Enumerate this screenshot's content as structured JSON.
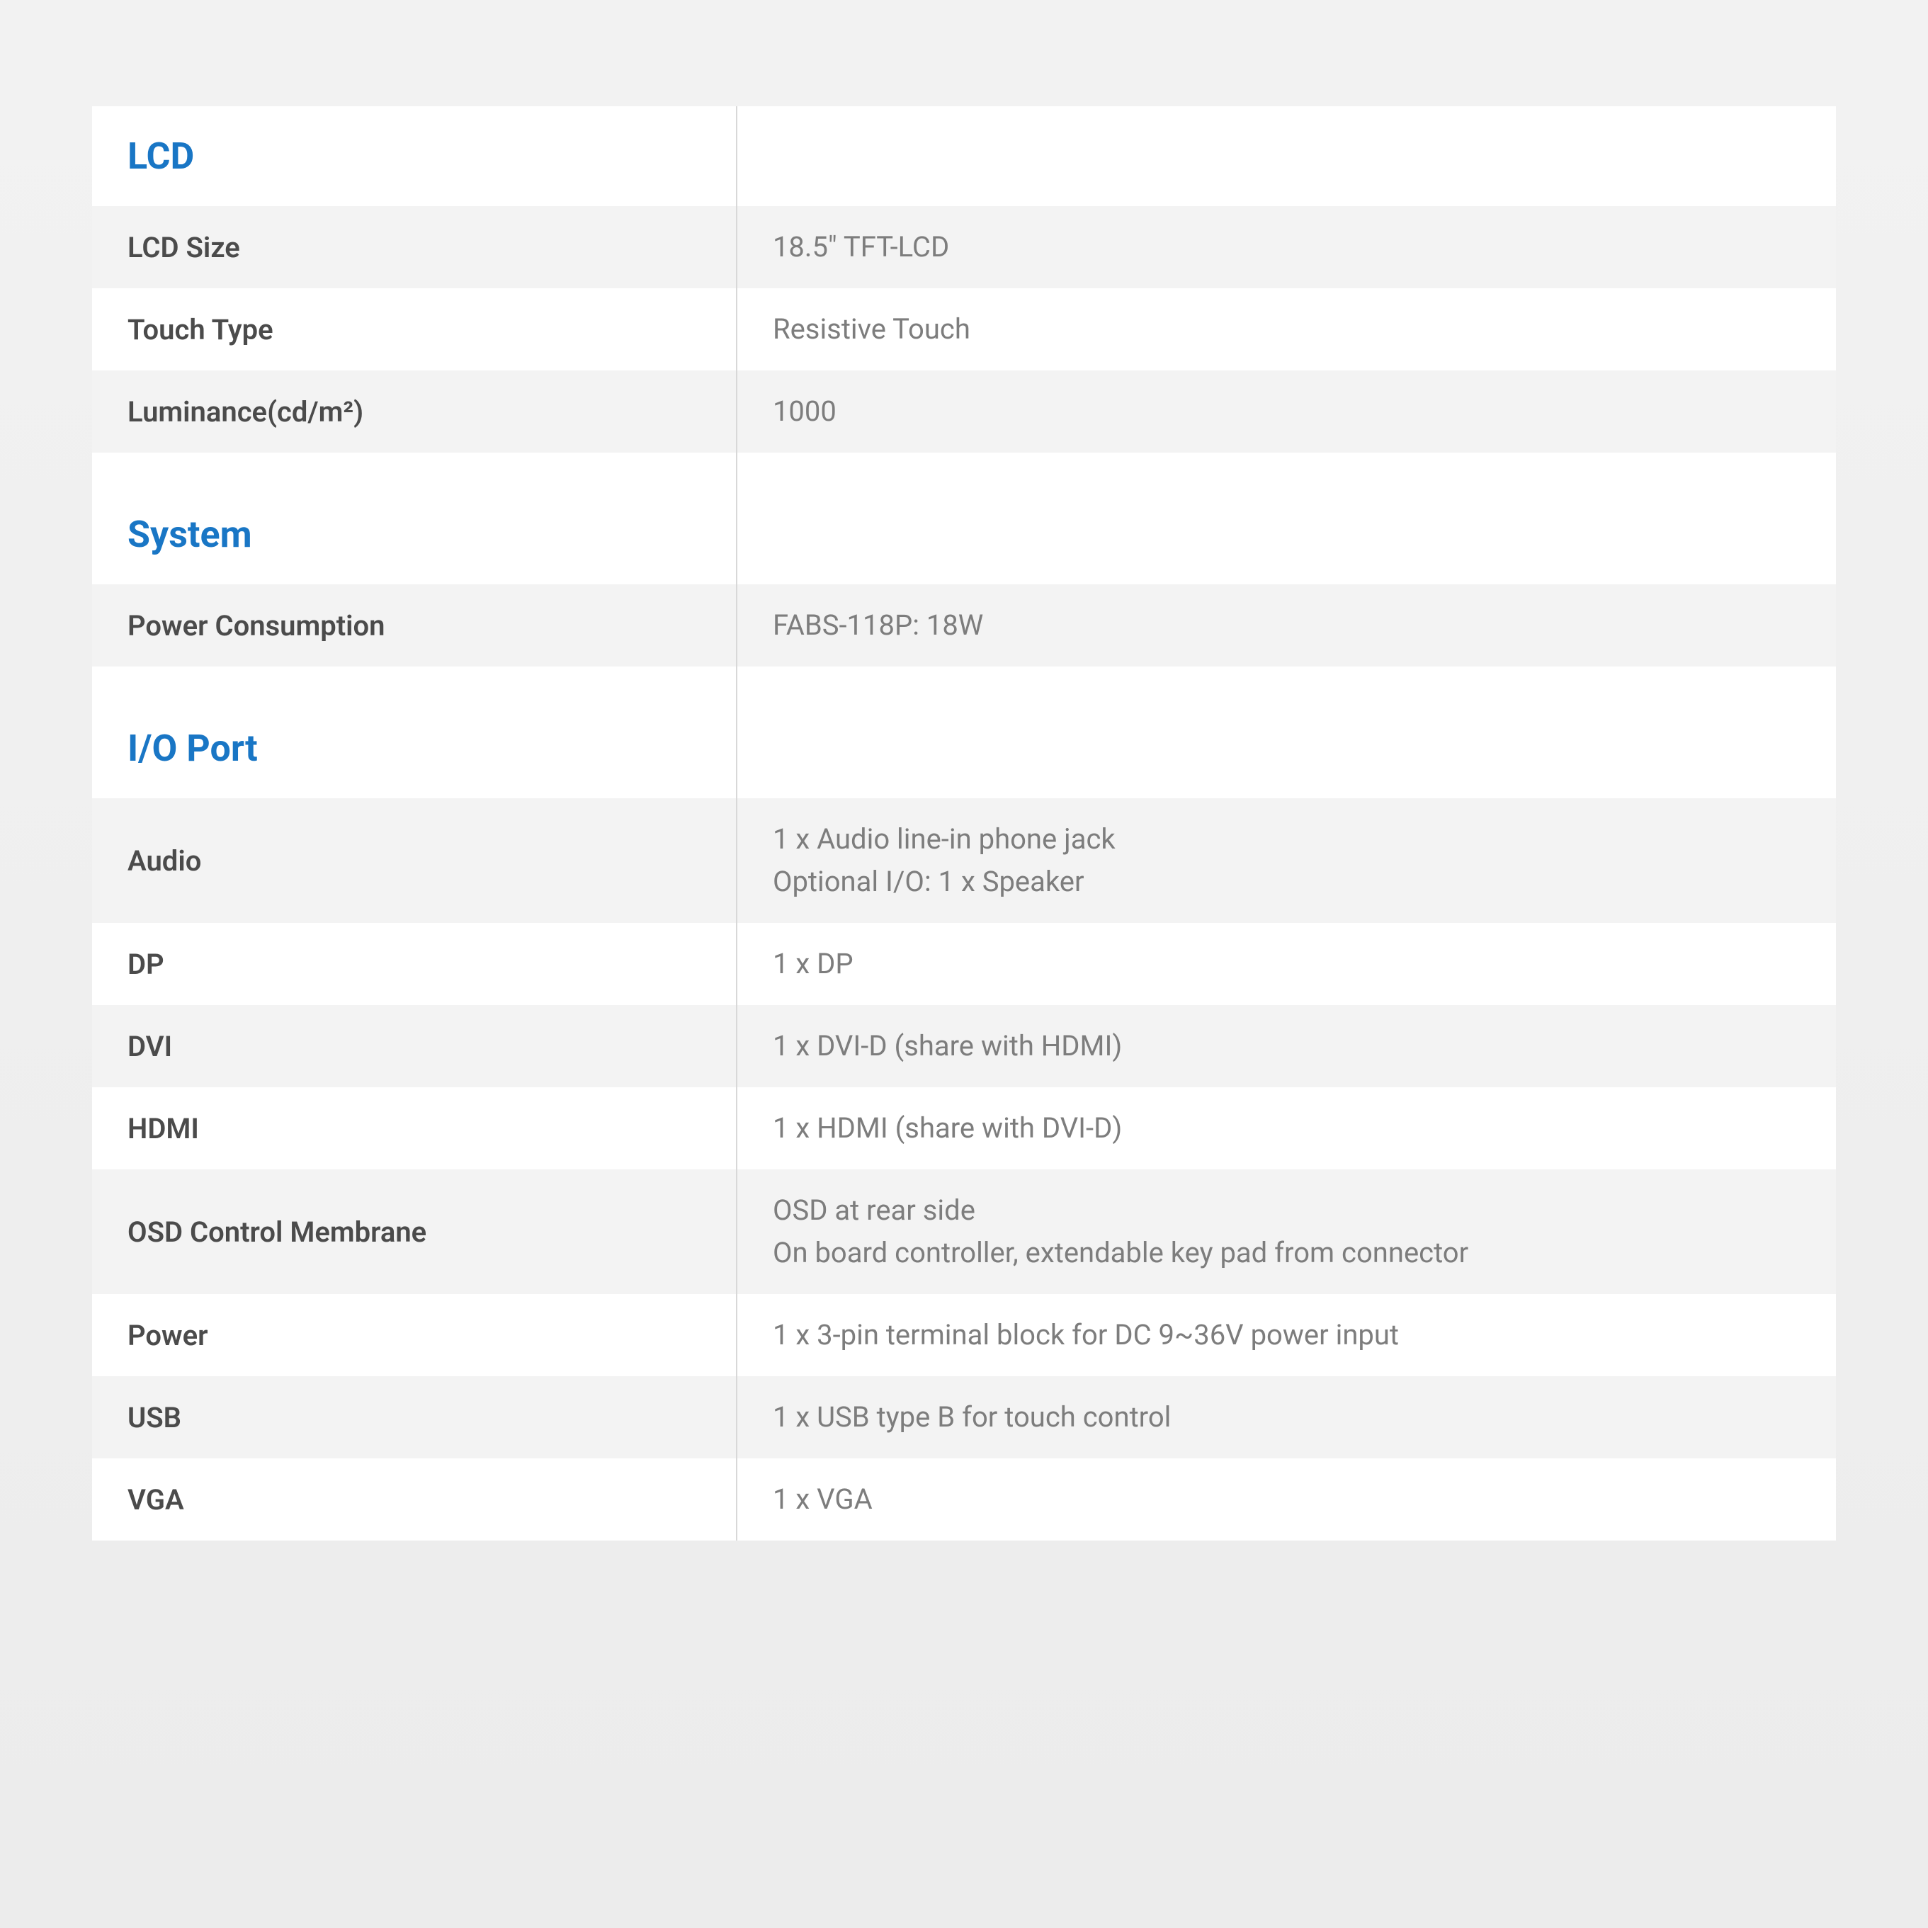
{
  "styling": {
    "background_gradient_top": "#f2f2f2",
    "background_gradient_bottom": "#ececec",
    "section_title_color": "#1976c5",
    "section_title_fontsize": 52,
    "section_title_fontweight": 700,
    "label_color": "#4b4b4b",
    "label_fontsize": 40,
    "label_fontweight": 600,
    "value_color": "#7d7d7d",
    "value_fontsize": 40,
    "value_fontweight": 400,
    "row_even_bg": "#f3f3f3",
    "row_odd_bg": "#ffffff",
    "header_bg": "#ffffff",
    "divider_color": "#d8d8d8",
    "label_column_width_pct": 37,
    "value_column_width_pct": 63
  },
  "sections": {
    "lcd": {
      "title": "LCD",
      "rows": {
        "size": {
          "label": "LCD Size",
          "value": "18.5\" TFT-LCD"
        },
        "touch": {
          "label": "Touch Type",
          "value": "Resistive Touch"
        },
        "luminance": {
          "label": "Luminance(cd/m²)",
          "value": "1000"
        }
      }
    },
    "system": {
      "title": "System",
      "rows": {
        "power_consumption": {
          "label": "Power Consumption",
          "value": "FABS-118P: 18W"
        }
      }
    },
    "io": {
      "title": "I/O Port",
      "rows": {
        "audio": {
          "label": "Audio",
          "value": "1 x Audio line-in phone jack\nOptional I/O: 1 x Speaker"
        },
        "dp": {
          "label": "DP",
          "value": "1 x DP"
        },
        "dvi": {
          "label": "DVI",
          "value": "1 x DVI-D (share with HDMI)"
        },
        "hdmi": {
          "label": "HDMI",
          "value": "1 x HDMI (share with DVI-D)"
        },
        "osd": {
          "label": "OSD Control Membrane",
          "value": "OSD at rear side\nOn board controller, extendable key pad from connector"
        },
        "power": {
          "label": "Power",
          "value": "1 x 3-pin terminal block for DC 9~36V power input"
        },
        "usb": {
          "label": "USB",
          "value": "1 x USB type B for touch control"
        },
        "vga": {
          "label": "VGA",
          "value": "1 x VGA"
        }
      }
    }
  }
}
